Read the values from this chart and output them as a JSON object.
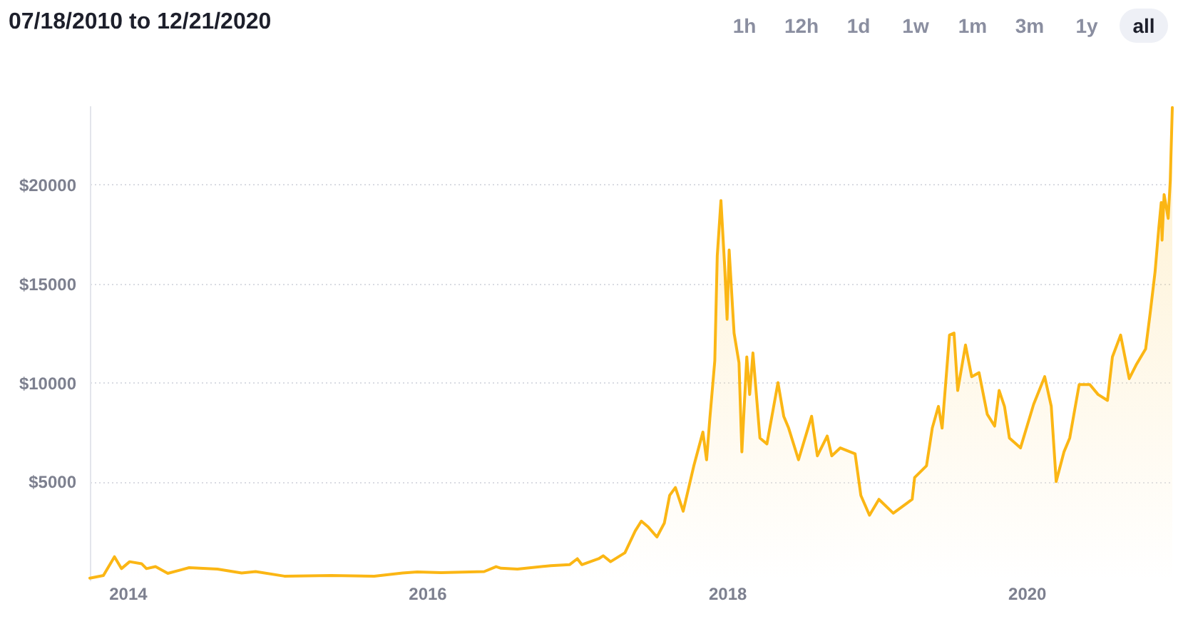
{
  "chart_data": {
    "type": "area",
    "title": "07/18/2010 to 12/21/2020",
    "annotations": [
      "1h",
      "12h",
      "1d",
      "1w",
      "1m",
      "3m",
      "1y",
      "all"
    ],
    "x": [
      "2013-10-01",
      "2013-11-03",
      "2013-11-30",
      "2013-12-17",
      "2014-01-06",
      "2014-02-04",
      "2014-02-16",
      "2014-03-10",
      "2014-04-09",
      "2014-05-31",
      "2014-08-08",
      "2014-10-06",
      "2014-11-09",
      "2015-01-18",
      "2015-05-12",
      "2015-08-25",
      "2015-11-02",
      "2015-12-08",
      "2016-02-04",
      "2016-05-19",
      "2016-06-17",
      "2016-06-29",
      "2016-08-08",
      "2016-10-28",
      "2016-12-13",
      "2017-01-01",
      "2017-01-12",
      "2017-02-22",
      "2017-03-05",
      "2017-03-23",
      "2017-04-27",
      "2017-05-22",
      "2017-06-06",
      "2017-06-23",
      "2017-07-14",
      "2017-08-01",
      "2017-08-14",
      "2017-08-28",
      "2017-09-16",
      "2017-10-12",
      "2017-11-03",
      "2017-11-12",
      "2017-11-20",
      "2017-12-02",
      "2017-12-08",
      "2017-12-17",
      "2017-12-26",
      "2018-01-01",
      "2018-01-06",
      "2018-01-18",
      "2018-01-30",
      "2018-02-06",
      "2018-02-18",
      "2018-02-25",
      "2018-03-05",
      "2018-03-22",
      "2018-04-08",
      "2018-05-05",
      "2018-05-19",
      "2018-05-31",
      "2018-06-24",
      "2018-07-26",
      "2018-08-09",
      "2018-09-02",
      "2018-09-13",
      "2018-10-04",
      "2018-11-09",
      "2018-11-23",
      "2018-12-14",
      "2019-01-06",
      "2019-02-10",
      "2019-03-28",
      "2019-04-03",
      "2019-05-02",
      "2019-05-16",
      "2019-05-31",
      "2019-06-09",
      "2019-06-27",
      "2019-07-08",
      "2019-07-17",
      "2019-08-05",
      "2019-08-20",
      "2019-09-07",
      "2019-09-27",
      "2019-10-15",
      "2019-10-26",
      "2019-11-08",
      "2019-11-20",
      "2019-12-17",
      "2020-01-18",
      "2020-02-14",
      "2020-03-01",
      "2020-03-13",
      "2020-04-01",
      "2020-04-15",
      "2020-05-08",
      "2020-06-03",
      "2020-06-23",
      "2020-07-16",
      "2020-07-28",
      "2020-08-17",
      "2020-09-07",
      "2020-09-24",
      "2020-10-17",
      "2020-10-28",
      "2020-11-09",
      "2020-11-18",
      "2020-11-24",
      "2020-11-26",
      "2020-12-01",
      "2020-12-11",
      "2020-12-16",
      "2020-12-21"
    ],
    "values": [
      120,
      250,
      1200,
      600,
      950,
      850,
      600,
      700,
      360,
      650,
      580,
      380,
      450,
      220,
      250,
      220,
      380,
      430,
      400,
      450,
      700,
      620,
      580,
      750,
      800,
      1100,
      800,
      1100,
      1250,
      950,
      1400,
      2500,
      3000,
      2700,
      2200,
      2900,
      4300,
      4700,
      3500,
      5800,
      7500,
      6100,
      8200,
      11100,
      16400,
      19200,
      15900,
      13200,
      16700,
      12500,
      11000,
      6500,
      11300,
      9400,
      11500,
      7200,
      6900,
      10000,
      8300,
      7700,
      6100,
      8300,
      6300,
      7300,
      6300,
      6700,
      6400,
      4300,
      3300,
      4100,
      3400,
      4100,
      5200,
      5800,
      7700,
      8800,
      7700,
      12400,
      12500,
      9600,
      11900,
      10300,
      10500,
      8400,
      7800,
      9600,
      8800,
      7200,
      6700,
      8900,
      10300,
      8800,
      5000,
      6500,
      7200,
      9900,
      9900,
      9400,
      9100,
      11300,
      12400,
      10200,
      10900,
      11700,
      13500,
      15600,
      17800,
      19100,
      17200,
      19500,
      18300,
      20200,
      23900
    ],
    "color": "#fbb614",
    "xlim": [
      "2013-10-01",
      "2020-12-21"
    ],
    "xticks": [
      "2014",
      "2016",
      "2018",
      "2020"
    ],
    "ylim": [
      0,
      24000
    ],
    "yticks": [
      {
        "value": 5000,
        "label": "$5000"
      },
      {
        "value": 10000,
        "label": "$10000"
      },
      {
        "value": 15000,
        "label": "$15000"
      },
      {
        "value": 20000,
        "label": "$20000"
      }
    ],
    "grid": "y"
  }
}
